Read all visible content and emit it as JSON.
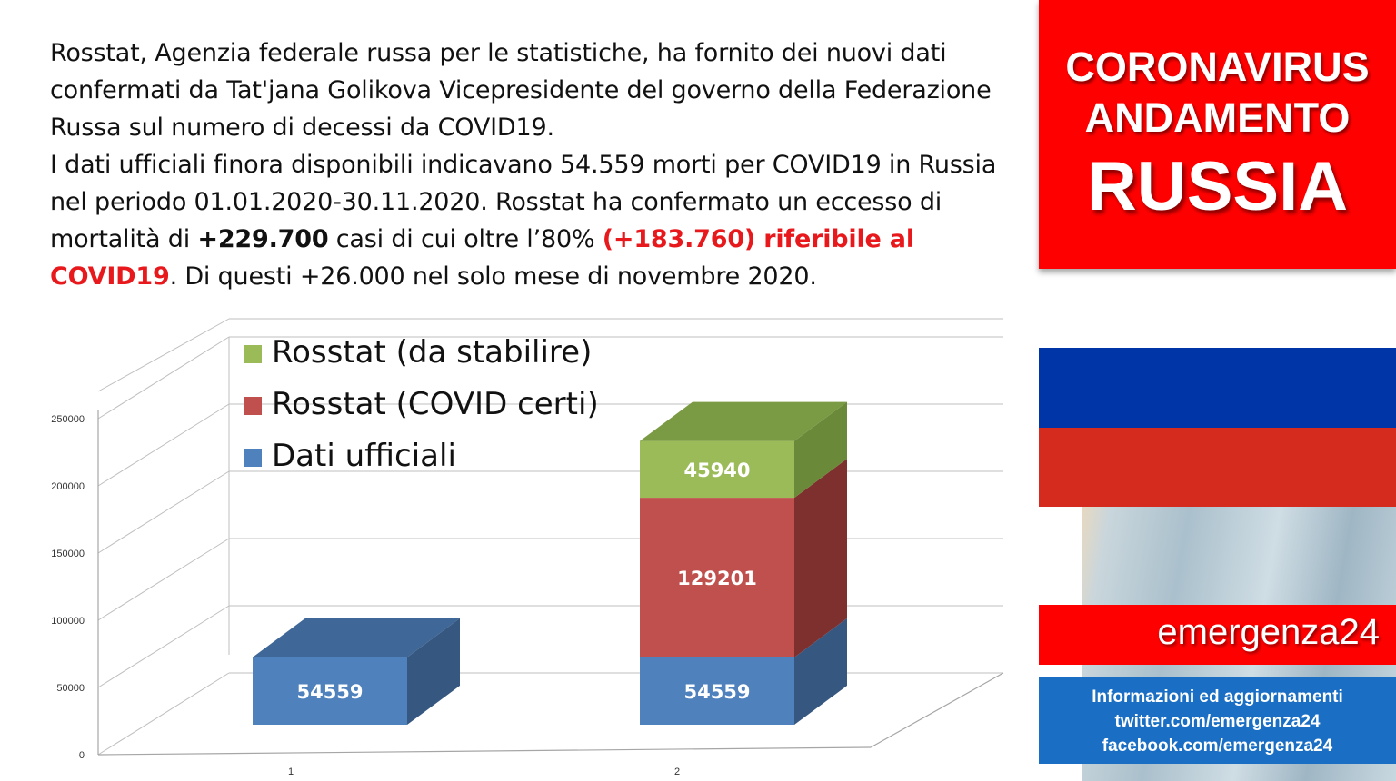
{
  "intro": {
    "p1": "Rosstat, Agenzia federale russa per le statistiche, ha fornito dei nuovi dati confermati da Tat'jana Golikova Vicepresidente del governo della Federazione Russa sul numero di decessi da COVID19.",
    "p2_a": "I dati ufficiali finora disponibili indicavano 54.559 morti per COVID19 in Russia nel periodo 01.01.2020-30.11.2020.  Rosstat ha confermato un eccesso di mortalità di ",
    "p2_bold": "+229.700",
    "p2_b": " casi di cui oltre l’80% ",
    "p2_red": "(+183.760) riferibile al COVID19",
    "p2_c": ".  Di questi +26.000 nel solo mese di novembre 2020."
  },
  "sidebar": {
    "title_line1": "CORONAVIRUS",
    "title_line2": "ANDAMENTO",
    "title_line3": "RUSSIA",
    "brand": "emergenza24",
    "info_line1": "Informazioni ed aggiornamenti",
    "info_line2": "twitter.com/emergenza24",
    "info_line3": "facebook.com/emergenza24"
  },
  "chart_data": {
    "type": "bar",
    "stacked": true,
    "three_d": true,
    "categories": [
      "1",
      "2"
    ],
    "series": [
      {
        "name": "Dati ufficiali",
        "values": [
          54559,
          54559
        ],
        "color": "#4f81bd",
        "side": "#36577f",
        "top": "#3f6797"
      },
      {
        "name": "Rosstat (COVID certi)",
        "values": [
          0,
          129201
        ],
        "color": "#c0504d",
        "side": "#7e302f",
        "top": "#9a3d3b"
      },
      {
        "name": "Rosstat (da stabilire)",
        "values": [
          0,
          45940
        ],
        "color": "#9bbb59",
        "side": "#6a8a39",
        "top": "#7a9a44"
      }
    ],
    "ylim": [
      0,
      250000
    ],
    "yticks": [
      0,
      50000,
      100000,
      150000,
      200000,
      250000
    ],
    "grid": true,
    "legend": "top-left"
  }
}
